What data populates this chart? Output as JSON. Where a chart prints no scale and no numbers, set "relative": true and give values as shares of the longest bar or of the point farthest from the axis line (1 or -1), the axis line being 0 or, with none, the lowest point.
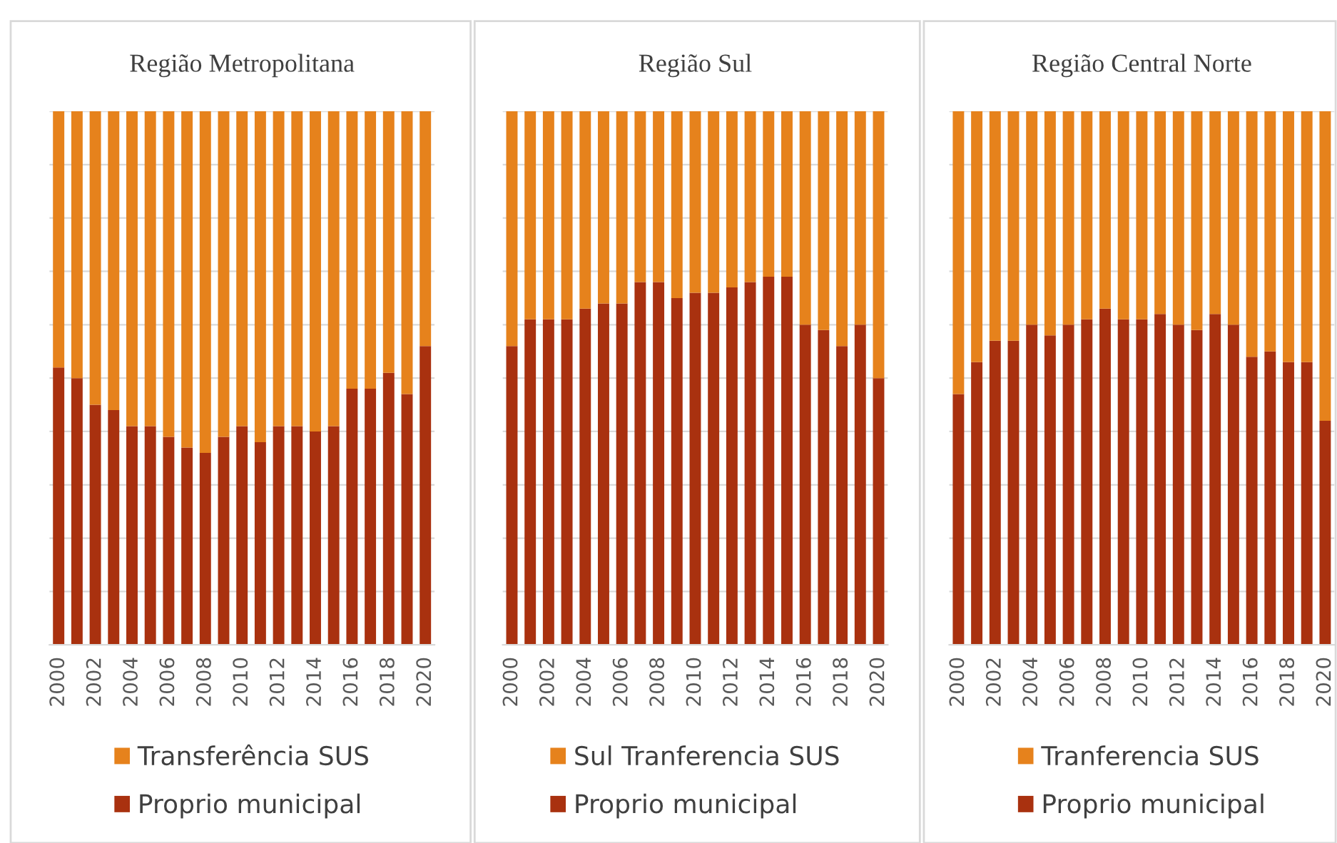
{
  "chart_data": [
    {
      "type": "bar",
      "stacked": true,
      "relative": true,
      "title": "Região Metropolitana",
      "categories": [
        "2000",
        null,
        "2002",
        null,
        "2004",
        null,
        "2006",
        null,
        "2008",
        null,
        "2010",
        null,
        "2012",
        null,
        "2014",
        null,
        "2016",
        null,
        "2018",
        null,
        "2020"
      ],
      "grid": "y",
      "legend": "bottom",
      "series": [
        {
          "name": "Proprio municipal",
          "color": "#a9310f",
          "values": [
            0.52,
            0.5,
            0.45,
            0.44,
            0.41,
            0.41,
            0.39,
            0.37,
            0.36,
            0.39,
            0.41,
            0.38,
            0.41,
            0.41,
            0.4,
            0.41,
            0.48,
            0.48,
            0.51,
            0.47,
            0.56
          ]
        },
        {
          "name": "Transferência SUS",
          "color": "#e6821c",
          "values": [
            0.48,
            0.5,
            0.55,
            0.56,
            0.59,
            0.59,
            0.61,
            0.63,
            0.64,
            0.61,
            0.59,
            0.62,
            0.59,
            0.59,
            0.6,
            0.59,
            0.52,
            0.52,
            0.49,
            0.53,
            0.44
          ]
        }
      ]
    },
    {
      "type": "bar",
      "stacked": true,
      "relative": true,
      "title": "Região Sul",
      "categories": [
        "2000",
        null,
        "2002",
        null,
        "2004",
        null,
        "2006",
        null,
        "2008",
        null,
        "2010",
        null,
        "2012",
        null,
        "2014",
        null,
        "2016",
        null,
        "2018",
        null,
        "2020"
      ],
      "grid": "y",
      "legend": "bottom",
      "series": [
        {
          "name": "Proprio municipal",
          "color": "#a9310f",
          "values": [
            0.56,
            0.61,
            0.61,
            0.61,
            0.63,
            0.64,
            0.64,
            0.68,
            0.68,
            0.65,
            0.66,
            0.66,
            0.67,
            0.68,
            0.69,
            0.69,
            0.6,
            0.59,
            0.56,
            0.6,
            0.5
          ]
        },
        {
          "name": "Sul Tranferencia SUS",
          "color": "#e6821c",
          "values": [
            0.44,
            0.39,
            0.39,
            0.39,
            0.37,
            0.36,
            0.36,
            0.32,
            0.32,
            0.35,
            0.34,
            0.34,
            0.33,
            0.32,
            0.31,
            0.31,
            0.4,
            0.41,
            0.44,
            0.4,
            0.5
          ]
        }
      ]
    },
    {
      "type": "bar",
      "stacked": true,
      "relative": true,
      "title": "Região Central Norte",
      "categories": [
        "2000",
        null,
        "2002",
        null,
        "2004",
        null,
        "2006",
        null,
        "2008",
        null,
        "2010",
        null,
        "2012",
        null,
        "2014",
        null,
        "2016",
        null,
        "2018",
        null,
        "2020"
      ],
      "grid": "y",
      "legend": "bottom",
      "series": [
        {
          "name": "Proprio municipal",
          "color": "#a9310f",
          "values": [
            0.47,
            0.53,
            0.57,
            0.57,
            0.6,
            0.58,
            0.6,
            0.61,
            0.63,
            0.61,
            0.61,
            0.62,
            0.6,
            0.59,
            0.62,
            0.6,
            0.54,
            0.55,
            0.53,
            0.53,
            0.42
          ]
        },
        {
          "name": "Tranferencia SUS",
          "color": "#e6821c",
          "values": [
            0.53,
            0.47,
            0.43,
            0.43,
            0.4,
            0.42,
            0.4,
            0.39,
            0.37,
            0.39,
            0.39,
            0.38,
            0.4,
            0.41,
            0.38,
            0.4,
            0.46,
            0.45,
            0.47,
            0.47,
            0.58
          ]
        }
      ]
    }
  ]
}
